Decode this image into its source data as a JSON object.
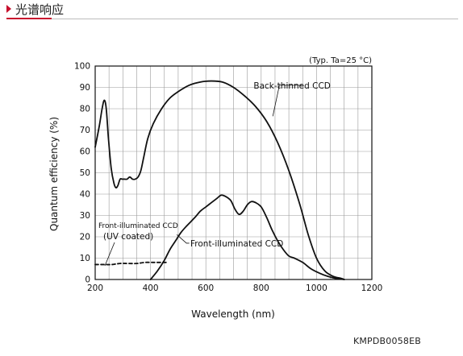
{
  "header": {
    "title": "光谱响应",
    "accent_color": "#c8102e"
  },
  "footer": {
    "code": "KMPDB0058EB"
  },
  "chart_data": {
    "type": "line",
    "ylabel": "Quantum efficiency (%)",
    "xlabel": "Wavelength (nm)",
    "note": "(Typ. Ta=25 °C)",
    "xlim": [
      200,
      1200
    ],
    "ylim": [
      0,
      100
    ],
    "xticks": [
      200,
      400,
      600,
      800,
      1000,
      1200
    ],
    "yticks": [
      0,
      10,
      20,
      30,
      40,
      50,
      60,
      70,
      80,
      90,
      100
    ],
    "grid": true,
    "series": [
      {
        "name": "Back-thinned CCD",
        "style": "solid",
        "points": [
          [
            200,
            62
          ],
          [
            215,
            72
          ],
          [
            225,
            80
          ],
          [
            233,
            84
          ],
          [
            240,
            80
          ],
          [
            248,
            66
          ],
          [
            258,
            52
          ],
          [
            268,
            45
          ],
          [
            275,
            43
          ],
          [
            282,
            44
          ],
          [
            290,
            47
          ],
          [
            298,
            47
          ],
          [
            306,
            47
          ],
          [
            315,
            47
          ],
          [
            325,
            48
          ],
          [
            335,
            47
          ],
          [
            345,
            47
          ],
          [
            355,
            48
          ],
          [
            365,
            51
          ],
          [
            375,
            57
          ],
          [
            390,
            66
          ],
          [
            410,
            73
          ],
          [
            440,
            80
          ],
          [
            470,
            85
          ],
          [
            500,
            88
          ],
          [
            540,
            91
          ],
          [
            580,
            92.5
          ],
          [
            620,
            93
          ],
          [
            660,
            92.5
          ],
          [
            700,
            90
          ],
          [
            740,
            86
          ],
          [
            780,
            81
          ],
          [
            820,
            74
          ],
          [
            860,
            64
          ],
          [
            900,
            51
          ],
          [
            940,
            35
          ],
          [
            970,
            21
          ],
          [
            1000,
            10
          ],
          [
            1030,
            4
          ],
          [
            1060,
            1.5
          ],
          [
            1090,
            0.5
          ],
          [
            1100,
            0
          ]
        ]
      },
      {
        "name": "Front-illuminated CCD",
        "style": "solid",
        "points": [
          [
            400,
            0
          ],
          [
            425,
            4
          ],
          [
            450,
            9
          ],
          [
            470,
            14
          ],
          [
            490,
            18
          ],
          [
            510,
            22
          ],
          [
            530,
            25
          ],
          [
            560,
            29
          ],
          [
            580,
            32
          ],
          [
            600,
            34
          ],
          [
            620,
            36
          ],
          [
            640,
            38
          ],
          [
            655,
            39.5
          ],
          [
            670,
            39
          ],
          [
            690,
            37
          ],
          [
            705,
            33
          ],
          [
            720,
            30.5
          ],
          [
            735,
            32
          ],
          [
            750,
            35
          ],
          [
            765,
            36.5
          ],
          [
            780,
            36
          ],
          [
            800,
            34
          ],
          [
            820,
            29
          ],
          [
            840,
            23
          ],
          [
            860,
            18
          ],
          [
            880,
            14
          ],
          [
            900,
            11
          ],
          [
            920,
            10
          ],
          [
            950,
            8
          ],
          [
            980,
            5
          ],
          [
            1010,
            3
          ],
          [
            1040,
            1.5
          ],
          [
            1070,
            0.5
          ],
          [
            1100,
            0
          ]
        ]
      },
      {
        "name": "Front-illuminated CCD (UV coated)",
        "style": "dashed",
        "points": [
          [
            200,
            7
          ],
          [
            230,
            7
          ],
          [
            260,
            7
          ],
          [
            290,
            7.5
          ],
          [
            320,
            7.5
          ],
          [
            350,
            7.5
          ],
          [
            380,
            8
          ],
          [
            410,
            8
          ],
          [
            440,
            8
          ],
          [
            460,
            8
          ]
        ]
      }
    ],
    "annotations": [
      {
        "text": "Back-thinned CCD",
        "series": 0
      },
      {
        "text": "Front-illuminated CCD",
        "series": 1
      },
      {
        "text": "Front-illuminated CCD",
        "series": 2
      },
      {
        "text": "(UV coated)",
        "series": 2
      }
    ]
  }
}
